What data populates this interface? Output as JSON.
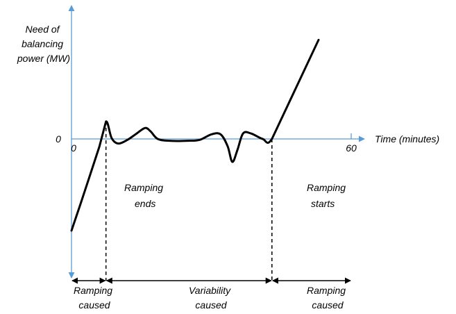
{
  "chart_data": {
    "type": "line",
    "ylabel": [
      "Need of",
      "balancing",
      "power (MW)"
    ],
    "xlabel": "Time (minutes)",
    "y_zero_label": "0",
    "x_ticks": [
      {
        "value": 0,
        "label": "0"
      },
      {
        "value": 60,
        "label": "60"
      }
    ],
    "xlim": [
      0,
      60
    ],
    "grid": false,
    "colors": {
      "axis": "#5b9bd5",
      "curve": "#000000"
    },
    "series": [
      {
        "values_description_points": [
          [
            0,
            -1.0
          ],
          [
            2,
            -0.7
          ],
          [
            4,
            -0.39
          ],
          [
            6,
            -0.08
          ],
          [
            7.4,
            0.19
          ],
          [
            8.6,
            0.01
          ],
          [
            10,
            -0.05
          ],
          [
            12,
            -0.01
          ],
          [
            14,
            0.06
          ],
          [
            15.8,
            0.12
          ],
          [
            17,
            0.08
          ],
          [
            18.5,
            0.0
          ],
          [
            21,
            -0.02
          ],
          [
            25,
            -0.02
          ],
          [
            27.5,
            -0.01
          ],
          [
            30,
            0.05
          ],
          [
            32,
            0.05
          ],
          [
            33.5,
            -0.08
          ],
          [
            34.5,
            -0.25
          ],
          [
            35.6,
            -0.12
          ],
          [
            36.8,
            0.06
          ],
          [
            38.5,
            0.06
          ],
          [
            41,
            0.0
          ],
          [
            43,
            0.0
          ],
          [
            48,
            0.54
          ],
          [
            53,
            1.08
          ]
        ]
      }
    ],
    "annotations": [
      {
        "id": "ramping-ends",
        "x": 7.4,
        "lines": [
          "Ramping",
          "ends"
        ]
      },
      {
        "id": "ramping-starts",
        "x": 43,
        "lines": [
          "Ramping",
          "starts"
        ]
      }
    ],
    "intervals": [
      {
        "id": "ramping-caused-left",
        "from": 0,
        "to": 7.4,
        "lines": [
          "Ramping",
          "caused"
        ]
      },
      {
        "id": "variability-caused",
        "from": 7.4,
        "to": 43,
        "lines": [
          "Variability",
          "caused"
        ]
      },
      {
        "id": "ramping-caused-right",
        "from": 43,
        "to": 60,
        "lines": [
          "Ramping",
          "caused"
        ]
      }
    ]
  }
}
